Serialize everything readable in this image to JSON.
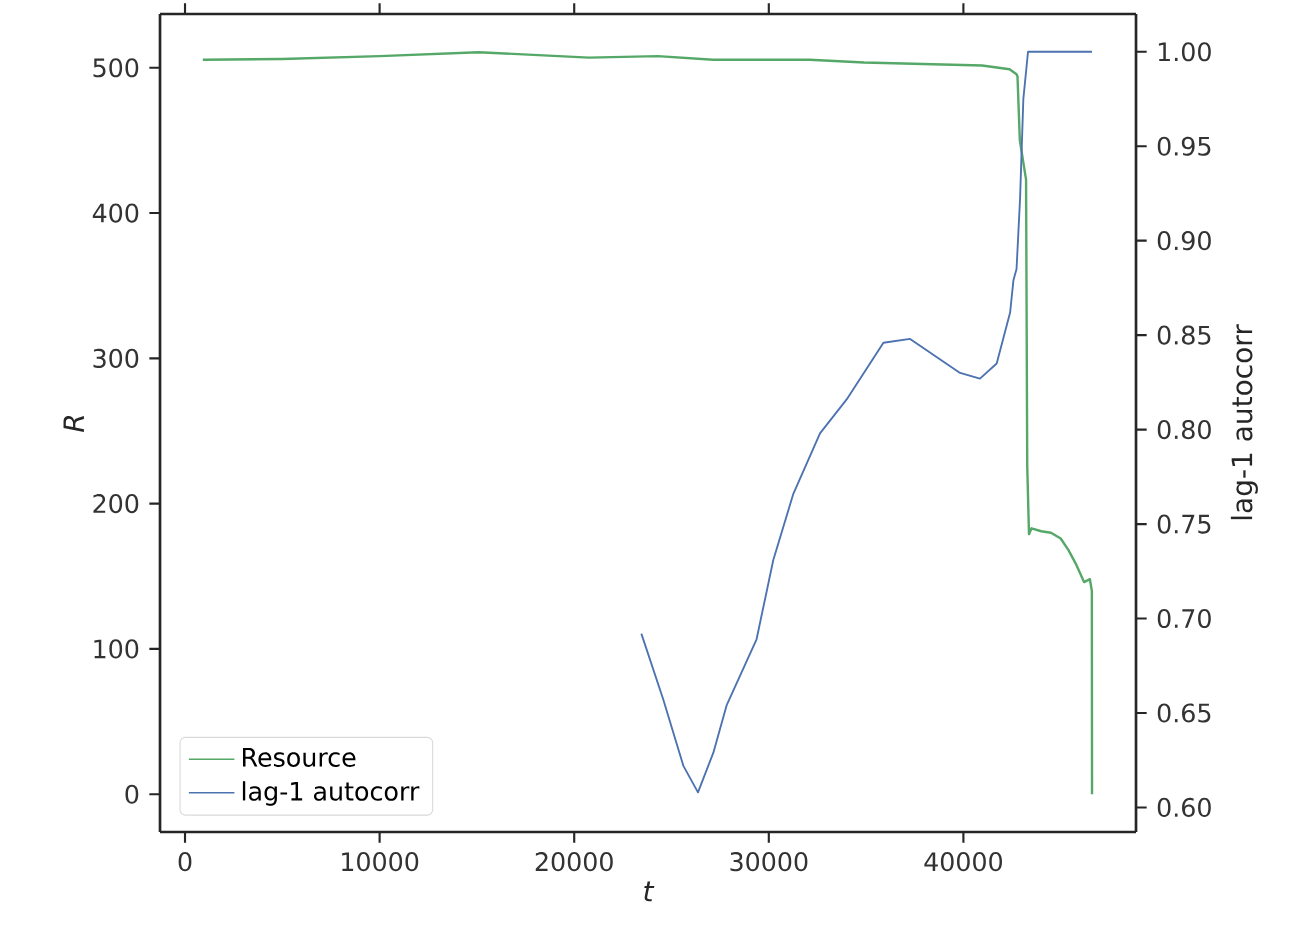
{
  "chart_data": {
    "type": "line",
    "xlabel": "t",
    "ylabel": "R",
    "y2label": "lag-1 autocorr",
    "xlim": [
      -1285,
      48870
    ],
    "ylim": [
      -26,
      537
    ],
    "y2lim": [
      0.587,
      1.02
    ],
    "xticks": [
      0,
      10000,
      20000,
      30000,
      40000
    ],
    "yticks": [
      0,
      100,
      200,
      300,
      400,
      500
    ],
    "y2ticks": [
      {
        "value": 0.6,
        "label": "0.60"
      },
      {
        "value": 0.65,
        "label": "0.65"
      },
      {
        "value": 0.7,
        "label": "0.70"
      },
      {
        "value": 0.75,
        "label": "0.75"
      },
      {
        "value": 0.8,
        "label": "0.80"
      },
      {
        "value": 0.85,
        "label": "0.85"
      },
      {
        "value": 0.9,
        "label": "0.90"
      },
      {
        "value": 0.95,
        "label": "0.95"
      },
      {
        "value": 1.0,
        "label": "1.00"
      }
    ],
    "legend": "bottom left",
    "series": [
      {
        "name": "Resource",
        "color": "#55a868",
        "x": [
          915,
          5000,
          10000,
          15090,
          20760,
          24300,
          27140,
          32100,
          34890,
          40960,
          42370,
          42730,
          42780,
          42900,
          43220,
          43280,
          43370,
          43500,
          44000,
          44500,
          45000,
          45400,
          45800,
          46200,
          46500,
          46600,
          46610
        ],
        "values": [
          505.5,
          506,
          508,
          510.7,
          507,
          508,
          505.5,
          505.5,
          503.6,
          501.6,
          499,
          495.6,
          494,
          450,
          423,
          226,
          179,
          183,
          181,
          180,
          176,
          168,
          158,
          146,
          148,
          140,
          0
        ]
      },
      {
        "name": "lag-1 autocorr",
        "color": "#4c72b0",
        "axis": "y2",
        "x": [
          23450,
          24580,
          25610,
          26360,
          27150,
          27830,
          29370,
          30230,
          31260,
          32630,
          34000,
          35890,
          37260,
          38110,
          39830,
          40850,
          41710,
          42400,
          42570,
          42730,
          42910,
          43080,
          43320,
          46610
        ],
        "values": [
          0.692,
          0.657,
          0.622,
          0.608,
          0.629,
          0.654,
          0.689,
          0.731,
          0.766,
          0.798,
          0.816,
          0.846,
          0.848,
          0.842,
          0.83,
          0.827,
          0.835,
          0.862,
          0.879,
          0.885,
          0.922,
          0.975,
          1.0,
          1.0
        ]
      }
    ]
  }
}
